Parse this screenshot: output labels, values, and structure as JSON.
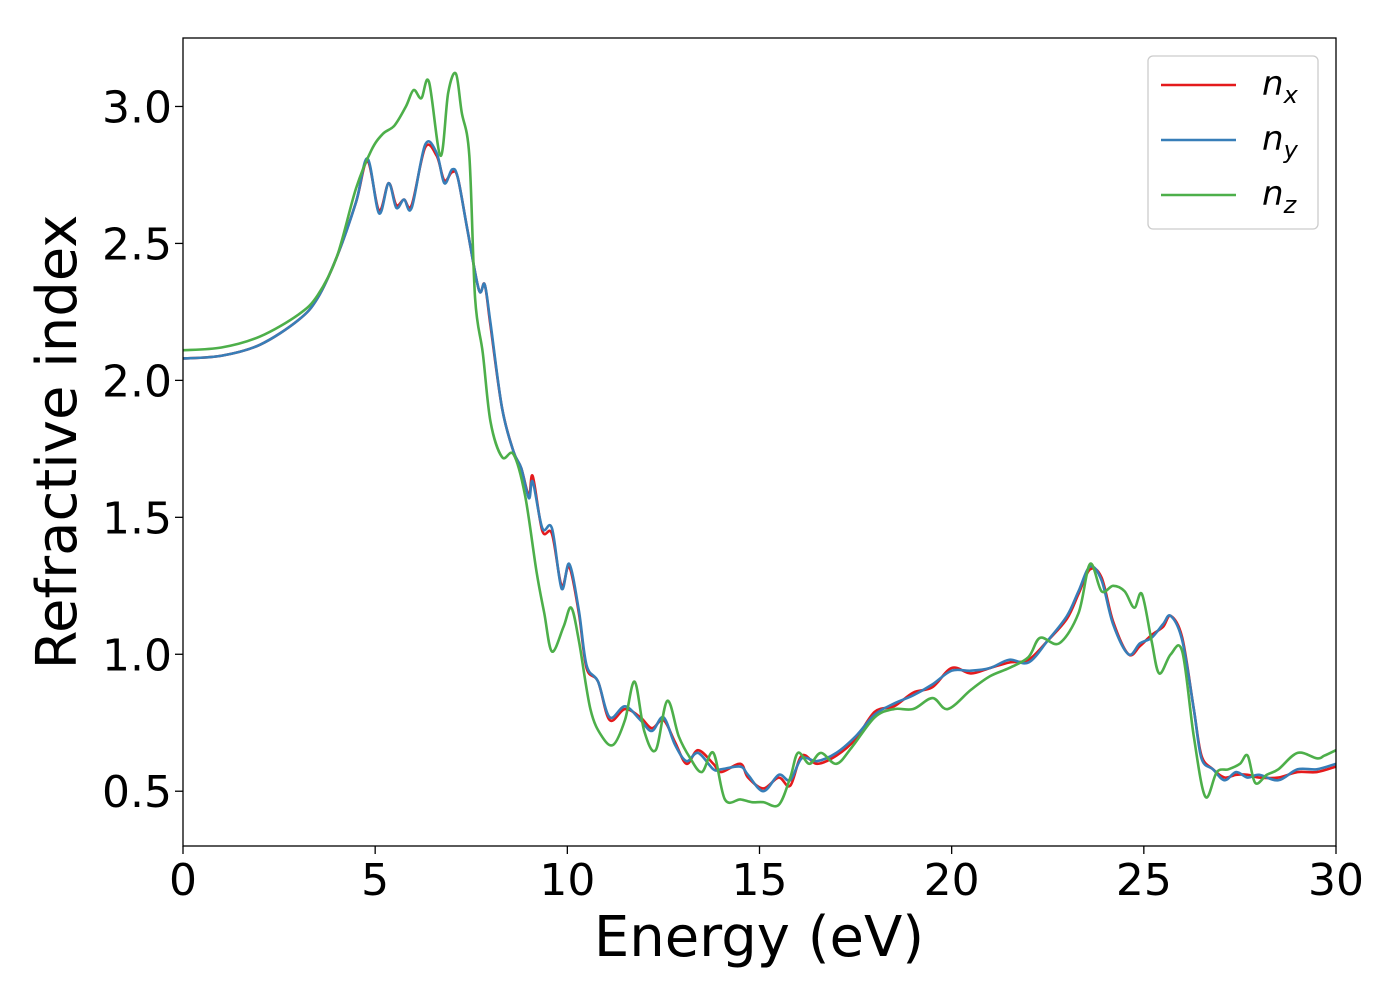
{
  "chart_data": {
    "type": "line",
    "xlabel": "Energy (eV)",
    "ylabel": "Refractive index",
    "xlim": [
      0,
      30
    ],
    "ylim": [
      0.3,
      3.25
    ],
    "x_ticks": [
      0,
      5,
      10,
      15,
      20,
      25,
      30
    ],
    "x_tick_labels": [
      "0",
      "5",
      "10",
      "15",
      "20",
      "25",
      "30"
    ],
    "y_ticks": [
      0.5,
      1.0,
      1.5,
      2.0,
      2.5,
      3.0
    ],
    "y_tick_labels": [
      "0.5",
      "1.0",
      "1.5",
      "2.0",
      "2.5",
      "3.0"
    ],
    "grid": false,
    "legend_position": "top-right",
    "series": [
      {
        "name": "n_x",
        "legend_base": "n",
        "legend_sub": "x",
        "color": "#e41a1c",
        "points": [
          [
            0,
            2.08
          ],
          [
            1,
            2.09
          ],
          [
            2,
            2.13
          ],
          [
            3,
            2.22
          ],
          [
            3.5,
            2.3
          ],
          [
            4,
            2.45
          ],
          [
            4.5,
            2.65
          ],
          [
            4.8,
            2.8
          ],
          [
            5.1,
            2.62
          ],
          [
            5.35,
            2.72
          ],
          [
            5.55,
            2.64
          ],
          [
            5.75,
            2.66
          ],
          [
            5.95,
            2.64
          ],
          [
            6.3,
            2.85
          ],
          [
            6.6,
            2.82
          ],
          [
            6.8,
            2.73
          ],
          [
            7.0,
            2.76
          ],
          [
            7.15,
            2.74
          ],
          [
            7.4,
            2.55
          ],
          [
            7.7,
            2.33
          ],
          [
            7.85,
            2.35
          ],
          [
            8.0,
            2.2
          ],
          [
            8.3,
            1.9
          ],
          [
            8.6,
            1.74
          ],
          [
            8.8,
            1.68
          ],
          [
            9.0,
            1.58
          ],
          [
            9.1,
            1.65
          ],
          [
            9.35,
            1.45
          ],
          [
            9.6,
            1.44
          ],
          [
            9.85,
            1.25
          ],
          [
            10.05,
            1.32
          ],
          [
            10.3,
            1.15
          ],
          [
            10.5,
            0.95
          ],
          [
            10.8,
            0.9
          ],
          [
            11.1,
            0.76
          ],
          [
            11.5,
            0.8
          ],
          [
            11.9,
            0.77
          ],
          [
            12.2,
            0.73
          ],
          [
            12.5,
            0.76
          ],
          [
            12.8,
            0.68
          ],
          [
            13.1,
            0.6
          ],
          [
            13.4,
            0.65
          ],
          [
            13.8,
            0.6
          ],
          [
            14.0,
            0.57
          ],
          [
            14.5,
            0.6
          ],
          [
            14.7,
            0.55
          ],
          [
            15.1,
            0.51
          ],
          [
            15.5,
            0.55
          ],
          [
            15.8,
            0.52
          ],
          [
            16.1,
            0.63
          ],
          [
            16.5,
            0.6
          ],
          [
            17.0,
            0.63
          ],
          [
            17.5,
            0.69
          ],
          [
            18.0,
            0.79
          ],
          [
            18.5,
            0.81
          ],
          [
            19.0,
            0.86
          ],
          [
            19.5,
            0.88
          ],
          [
            20.0,
            0.95
          ],
          [
            20.5,
            0.93
          ],
          [
            21.0,
            0.95
          ],
          [
            21.5,
            0.97
          ],
          [
            22.0,
            0.98
          ],
          [
            22.5,
            1.05
          ],
          [
            23.0,
            1.13
          ],
          [
            23.3,
            1.22
          ],
          [
            23.6,
            1.31
          ],
          [
            23.9,
            1.28
          ],
          [
            24.2,
            1.12
          ],
          [
            24.6,
            1.0
          ],
          [
            24.9,
            1.03
          ],
          [
            25.2,
            1.07
          ],
          [
            25.5,
            1.1
          ],
          [
            25.7,
            1.14
          ],
          [
            26.0,
            1.06
          ],
          [
            26.3,
            0.8
          ],
          [
            26.5,
            0.63
          ],
          [
            26.8,
            0.58
          ],
          [
            27.1,
            0.55
          ],
          [
            27.4,
            0.56
          ],
          [
            27.7,
            0.56
          ],
          [
            28.0,
            0.55
          ],
          [
            28.5,
            0.55
          ],
          [
            29.0,
            0.57
          ],
          [
            29.5,
            0.57
          ],
          [
            30.0,
            0.59
          ]
        ]
      },
      {
        "name": "n_y",
        "legend_base": "n",
        "legend_sub": "y",
        "color": "#377eb8",
        "points": [
          [
            0,
            2.08
          ],
          [
            1,
            2.09
          ],
          [
            2,
            2.13
          ],
          [
            3,
            2.22
          ],
          [
            3.5,
            2.3
          ],
          [
            4,
            2.45
          ],
          [
            4.5,
            2.65
          ],
          [
            4.8,
            2.81
          ],
          [
            5.1,
            2.61
          ],
          [
            5.35,
            2.72
          ],
          [
            5.55,
            2.63
          ],
          [
            5.75,
            2.66
          ],
          [
            5.95,
            2.63
          ],
          [
            6.3,
            2.86
          ],
          [
            6.6,
            2.83
          ],
          [
            6.8,
            2.72
          ],
          [
            7.0,
            2.77
          ],
          [
            7.15,
            2.74
          ],
          [
            7.4,
            2.55
          ],
          [
            7.7,
            2.33
          ],
          [
            7.85,
            2.35
          ],
          [
            8.0,
            2.21
          ],
          [
            8.3,
            1.9
          ],
          [
            8.6,
            1.74
          ],
          [
            8.8,
            1.68
          ],
          [
            9.0,
            1.57
          ],
          [
            9.1,
            1.63
          ],
          [
            9.35,
            1.46
          ],
          [
            9.6,
            1.46
          ],
          [
            9.85,
            1.24
          ],
          [
            10.05,
            1.33
          ],
          [
            10.3,
            1.16
          ],
          [
            10.5,
            0.96
          ],
          [
            10.8,
            0.9
          ],
          [
            11.1,
            0.77
          ],
          [
            11.5,
            0.81
          ],
          [
            11.9,
            0.76
          ],
          [
            12.2,
            0.72
          ],
          [
            12.5,
            0.77
          ],
          [
            12.8,
            0.67
          ],
          [
            13.1,
            0.61
          ],
          [
            13.4,
            0.64
          ],
          [
            13.8,
            0.58
          ],
          [
            14.0,
            0.58
          ],
          [
            14.5,
            0.59
          ],
          [
            14.7,
            0.56
          ],
          [
            15.1,
            0.5
          ],
          [
            15.5,
            0.56
          ],
          [
            15.8,
            0.54
          ],
          [
            16.1,
            0.62
          ],
          [
            16.5,
            0.61
          ],
          [
            17.0,
            0.64
          ],
          [
            17.5,
            0.7
          ],
          [
            18.0,
            0.78
          ],
          [
            18.5,
            0.82
          ],
          [
            19.0,
            0.85
          ],
          [
            19.5,
            0.89
          ],
          [
            20.0,
            0.94
          ],
          [
            20.5,
            0.94
          ],
          [
            21.0,
            0.95
          ],
          [
            21.5,
            0.98
          ],
          [
            22.0,
            0.97
          ],
          [
            22.5,
            1.05
          ],
          [
            23.0,
            1.14
          ],
          [
            23.3,
            1.23
          ],
          [
            23.6,
            1.32
          ],
          [
            23.9,
            1.27
          ],
          [
            24.2,
            1.11
          ],
          [
            24.6,
            1.0
          ],
          [
            24.9,
            1.04
          ],
          [
            25.2,
            1.06
          ],
          [
            25.5,
            1.11
          ],
          [
            25.7,
            1.14
          ],
          [
            26.0,
            1.05
          ],
          [
            26.3,
            0.8
          ],
          [
            26.5,
            0.62
          ],
          [
            26.8,
            0.58
          ],
          [
            27.1,
            0.54
          ],
          [
            27.4,
            0.57
          ],
          [
            27.7,
            0.55
          ],
          [
            28.0,
            0.56
          ],
          [
            28.5,
            0.54
          ],
          [
            29.0,
            0.58
          ],
          [
            29.5,
            0.58
          ],
          [
            30.0,
            0.6
          ]
        ]
      },
      {
        "name": "n_z",
        "legend_base": "n",
        "legend_sub": "z",
        "color": "#4daf4a",
        "points": [
          [
            0,
            2.11
          ],
          [
            1,
            2.12
          ],
          [
            2,
            2.16
          ],
          [
            3,
            2.24
          ],
          [
            3.5,
            2.31
          ],
          [
            4,
            2.45
          ],
          [
            4.5,
            2.7
          ],
          [
            4.9,
            2.84
          ],
          [
            5.2,
            2.9
          ],
          [
            5.5,
            2.93
          ],
          [
            5.8,
            3.0
          ],
          [
            6.0,
            3.06
          ],
          [
            6.2,
            3.03
          ],
          [
            6.4,
            3.09
          ],
          [
            6.7,
            2.82
          ],
          [
            6.9,
            3.05
          ],
          [
            7.1,
            3.12
          ],
          [
            7.25,
            2.98
          ],
          [
            7.45,
            2.82
          ],
          [
            7.6,
            2.3
          ],
          [
            7.8,
            2.1
          ],
          [
            8.0,
            1.85
          ],
          [
            8.3,
            1.72
          ],
          [
            8.6,
            1.73
          ],
          [
            8.9,
            1.58
          ],
          [
            9.2,
            1.3
          ],
          [
            9.4,
            1.15
          ],
          [
            9.6,
            1.01
          ],
          [
            9.9,
            1.1
          ],
          [
            10.1,
            1.17
          ],
          [
            10.3,
            1.05
          ],
          [
            10.6,
            0.8
          ],
          [
            10.9,
            0.7
          ],
          [
            11.2,
            0.67
          ],
          [
            11.5,
            0.76
          ],
          [
            11.75,
            0.9
          ],
          [
            12.0,
            0.72
          ],
          [
            12.3,
            0.65
          ],
          [
            12.6,
            0.83
          ],
          [
            12.9,
            0.7
          ],
          [
            13.2,
            0.62
          ],
          [
            13.5,
            0.57
          ],
          [
            13.8,
            0.64
          ],
          [
            14.1,
            0.47
          ],
          [
            14.5,
            0.47
          ],
          [
            14.8,
            0.46
          ],
          [
            15.1,
            0.46
          ],
          [
            15.5,
            0.45
          ],
          [
            15.8,
            0.55
          ],
          [
            16.0,
            0.64
          ],
          [
            16.3,
            0.6
          ],
          [
            16.6,
            0.64
          ],
          [
            17.0,
            0.6
          ],
          [
            17.4,
            0.66
          ],
          [
            18.0,
            0.77
          ],
          [
            18.5,
            0.8
          ],
          [
            19.0,
            0.8
          ],
          [
            19.5,
            0.84
          ],
          [
            19.9,
            0.8
          ],
          [
            20.5,
            0.87
          ],
          [
            21.0,
            0.92
          ],
          [
            21.5,
            0.95
          ],
          [
            22.0,
            0.99
          ],
          [
            22.3,
            1.06
          ],
          [
            22.8,
            1.04
          ],
          [
            23.3,
            1.15
          ],
          [
            23.6,
            1.33
          ],
          [
            23.9,
            1.23
          ],
          [
            24.2,
            1.25
          ],
          [
            24.5,
            1.23
          ],
          [
            24.75,
            1.17
          ],
          [
            24.95,
            1.22
          ],
          [
            25.2,
            1.05
          ],
          [
            25.4,
            0.93
          ],
          [
            25.7,
            1.0
          ],
          [
            26.0,
            1.01
          ],
          [
            26.3,
            0.7
          ],
          [
            26.6,
            0.48
          ],
          [
            26.9,
            0.57
          ],
          [
            27.2,
            0.58
          ],
          [
            27.5,
            0.6
          ],
          [
            27.7,
            0.63
          ],
          [
            27.9,
            0.53
          ],
          [
            28.2,
            0.56
          ],
          [
            28.5,
            0.58
          ],
          [
            29.0,
            0.64
          ],
          [
            29.5,
            0.62
          ],
          [
            29.7,
            0.63
          ],
          [
            30.0,
            0.65
          ]
        ]
      }
    ]
  }
}
